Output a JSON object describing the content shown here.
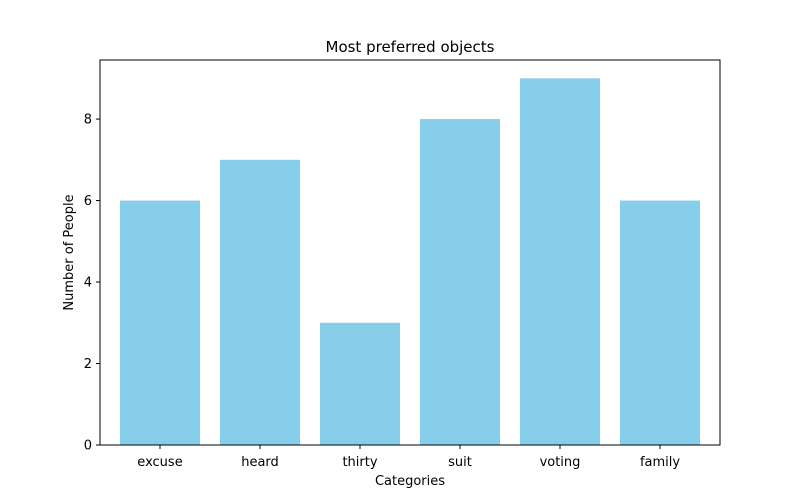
{
  "chart_data": {
    "type": "bar",
    "title": "Most preferred objects",
    "xlabel": "Categories",
    "ylabel": "Number of People",
    "categories": [
      "excuse",
      "heard",
      "thirty",
      "suit",
      "voting",
      "family"
    ],
    "values": [
      6,
      7,
      3,
      8,
      9,
      6
    ],
    "ylim": [
      0,
      9.45
    ],
    "yticks": [
      0,
      2,
      4,
      6,
      8
    ],
    "grid": false,
    "legend": "none",
    "bar_color": "#87ceeb"
  }
}
